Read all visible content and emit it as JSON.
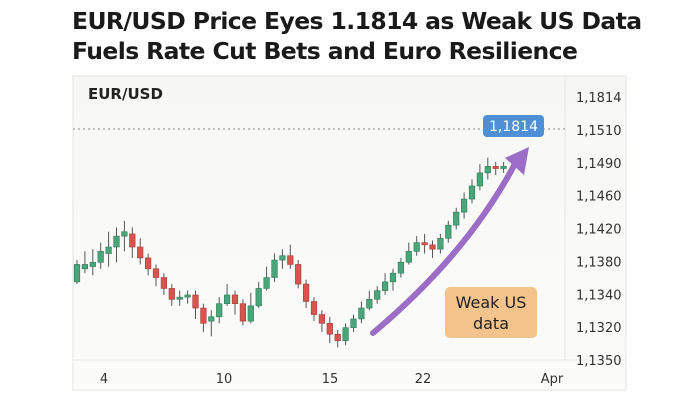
{
  "headline": {
    "line1": "EUR/USD Price Eyes 1.1814 as Weak US Data",
    "line2": "Fuels Rate Cut Bets and Euro Resilience"
  },
  "colors": {
    "up": "#4aa57a",
    "down": "#d9534f",
    "arrow": "#9b6dc6",
    "price_tag": "#4f8fd6",
    "callout_bg": "#f2c48c"
  },
  "chart_data": {
    "type": "candlestick",
    "title": "EUR/USD",
    "y_tick_labels": [
      "1,1814",
      "1,1510",
      "1,1490",
      "1,1460",
      "1,1420",
      "1,1380",
      "1,1340",
      "1,1320",
      "1,1350"
    ],
    "x_tick_labels": [
      "4",
      "10",
      "15",
      "22",
      "Apr"
    ],
    "price_tag": "1,1814",
    "annotation": {
      "line1": "Weak US",
      "line2": "data"
    },
    "grid": false,
    "candles": [
      [
        0.34,
        0.42,
        0.44,
        0.33
      ],
      [
        0.4,
        0.42,
        0.48,
        0.38
      ],
      [
        0.41,
        0.43,
        0.49,
        0.37
      ],
      [
        0.43,
        0.48,
        0.52,
        0.4
      ],
      [
        0.47,
        0.5,
        0.57,
        0.41
      ],
      [
        0.5,
        0.55,
        0.59,
        0.43
      ],
      [
        0.55,
        0.57,
        0.62,
        0.48
      ],
      [
        0.56,
        0.5,
        0.59,
        0.45
      ],
      [
        0.5,
        0.45,
        0.54,
        0.42
      ],
      [
        0.45,
        0.4,
        0.47,
        0.37
      ],
      [
        0.4,
        0.36,
        0.42,
        0.32
      ],
      [
        0.36,
        0.31,
        0.38,
        0.28
      ],
      [
        0.31,
        0.26,
        0.33,
        0.23
      ],
      [
        0.26,
        0.27,
        0.3,
        0.23
      ],
      [
        0.27,
        0.28,
        0.3,
        0.24
      ],
      [
        0.28,
        0.22,
        0.3,
        0.17
      ],
      [
        0.22,
        0.15,
        0.24,
        0.11
      ],
      [
        0.16,
        0.18,
        0.21,
        0.09
      ],
      [
        0.18,
        0.24,
        0.27,
        0.15
      ],
      [
        0.24,
        0.28,
        0.33,
        0.23
      ],
      [
        0.28,
        0.24,
        0.3,
        0.19
      ],
      [
        0.24,
        0.16,
        0.26,
        0.14
      ],
      [
        0.16,
        0.23,
        0.29,
        0.15
      ],
      [
        0.23,
        0.31,
        0.34,
        0.22
      ],
      [
        0.31,
        0.36,
        0.41,
        0.3
      ],
      [
        0.36,
        0.44,
        0.47,
        0.34
      ],
      [
        0.44,
        0.46,
        0.49,
        0.4
      ],
      [
        0.46,
        0.42,
        0.51,
        0.4
      ],
      [
        0.42,
        0.33,
        0.44,
        0.31
      ],
      [
        0.33,
        0.25,
        0.35,
        0.22
      ],
      [
        0.25,
        0.19,
        0.27,
        0.16
      ],
      [
        0.19,
        0.15,
        0.21,
        0.11
      ],
      [
        0.15,
        0.1,
        0.18,
        0.06
      ],
      [
        0.1,
        0.07,
        0.12,
        0.04
      ],
      [
        0.07,
        0.13,
        0.15,
        0.05
      ],
      [
        0.13,
        0.17,
        0.19,
        0.11
      ],
      [
        0.17,
        0.22,
        0.25,
        0.15
      ],
      [
        0.22,
        0.26,
        0.3,
        0.21
      ],
      [
        0.26,
        0.3,
        0.32,
        0.24
      ],
      [
        0.3,
        0.34,
        0.38,
        0.28
      ],
      [
        0.34,
        0.38,
        0.4,
        0.3
      ],
      [
        0.38,
        0.43,
        0.45,
        0.36
      ],
      [
        0.43,
        0.48,
        0.52,
        0.42
      ],
      [
        0.48,
        0.52,
        0.55,
        0.46
      ],
      [
        0.52,
        0.51,
        0.56,
        0.47
      ],
      [
        0.51,
        0.49,
        0.53,
        0.45
      ],
      [
        0.49,
        0.54,
        0.56,
        0.47
      ],
      [
        0.54,
        0.6,
        0.62,
        0.52
      ],
      [
        0.6,
        0.66,
        0.68,
        0.58
      ],
      [
        0.66,
        0.72,
        0.75,
        0.63
      ],
      [
        0.72,
        0.78,
        0.81,
        0.7
      ],
      [
        0.78,
        0.84,
        0.88,
        0.76
      ],
      [
        0.84,
        0.87,
        0.91,
        0.81
      ],
      [
        0.87,
        0.86,
        0.89,
        0.83
      ],
      [
        0.86,
        0.87,
        0.89,
        0.84
      ]
    ]
  }
}
